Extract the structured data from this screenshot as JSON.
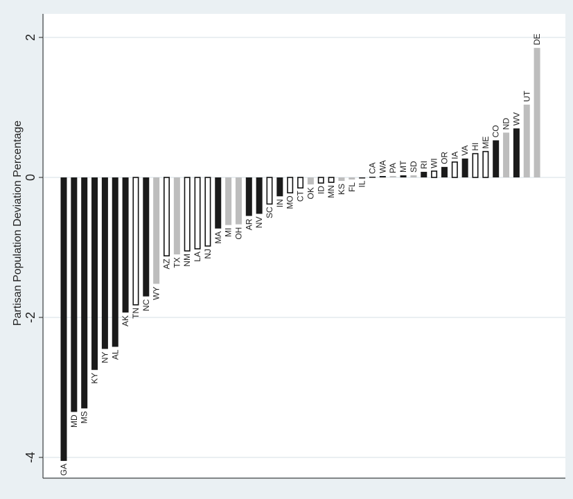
{
  "chart_data": {
    "type": "bar",
    "ylabel": "Partisan Population Deviation Percentage",
    "ylim": [
      -4.2,
      2.1
    ],
    "yticks": [
      2,
      0,
      -2,
      -4
    ],
    "ytick_labels": [
      "2",
      "0",
      "-2",
      "-4"
    ],
    "grid": true,
    "colors": {
      "black": "#1a1a1a",
      "gray": "#bdbdbd",
      "white": "#ffffff",
      "plot_bg": "#ffffff",
      "page_bg": "#eaf0f3",
      "grid": "#dde5ea"
    },
    "categories": [
      "GA",
      "MD",
      "MS",
      "KY",
      "NY",
      "AL",
      "AK",
      "TN",
      "NC",
      "WY",
      "AZ",
      "TX",
      "NM",
      "LA",
      "NJ",
      "MA",
      "MI",
      "OH",
      "AR",
      "NV",
      "SC",
      "IN",
      "MO",
      "CT",
      "OK",
      "ID",
      "MN",
      "KS",
      "FL",
      "IL",
      "CA",
      "WA",
      "PA",
      "MT",
      "SD",
      "RI",
      "WI",
      "OR",
      "IA",
      "VA",
      "HI",
      "ME",
      "CO",
      "ND",
      "WV",
      "UT",
      "DE"
    ],
    "values": [
      -4.05,
      -3.35,
      -3.3,
      -2.75,
      -2.45,
      -2.42,
      -1.93,
      -1.82,
      -1.7,
      -1.52,
      -1.12,
      -1.1,
      -1.05,
      -1.02,
      -0.98,
      -0.73,
      -0.68,
      -0.67,
      -0.55,
      -0.52,
      -0.38,
      -0.27,
      -0.22,
      -0.15,
      -0.1,
      -0.08,
      -0.07,
      -0.05,
      -0.03,
      -0.005,
      0.01,
      0.02,
      0.02,
      0.03,
      0.03,
      0.08,
      0.09,
      0.15,
      0.22,
      0.27,
      0.34,
      0.37,
      0.53,
      0.64,
      0.7,
      1.04,
      1.85
    ],
    "fills": [
      "black",
      "black",
      "black",
      "black",
      "black",
      "black",
      "black",
      "white",
      "black",
      "gray",
      "white",
      "gray",
      "white",
      "white",
      "white",
      "black",
      "gray",
      "gray",
      "black",
      "black",
      "white",
      "black",
      "white",
      "white",
      "gray",
      "white",
      "white",
      "gray",
      "gray",
      "black",
      "black",
      "black",
      "gray",
      "black",
      "gray",
      "black",
      "white",
      "black",
      "white",
      "black",
      "white",
      "white",
      "black",
      "gray",
      "black",
      "gray",
      "gray"
    ]
  }
}
